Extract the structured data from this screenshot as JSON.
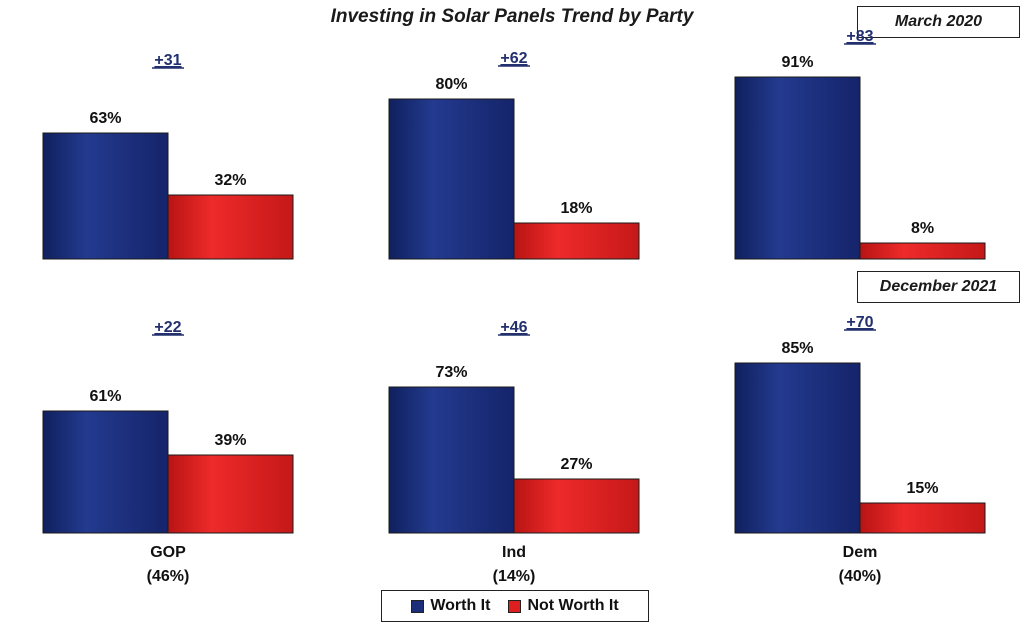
{
  "chart_data": {
    "type": "bar",
    "title": "Investing in Solar Panels Trend by Party",
    "categories": [
      "GOP",
      "Ind",
      "Dem"
    ],
    "category_sublabels": [
      "(46%)",
      "(14%)",
      "(40%)"
    ],
    "ylim": [
      0,
      100
    ],
    "grid": false,
    "legend_position": "bottom",
    "series": [
      {
        "name": "Worth It",
        "color": "#1b2e7a"
      },
      {
        "name": "Not Worth It",
        "color": "#dd1f1f"
      }
    ],
    "panels": [
      {
        "period": "March 2020",
        "worth_it": [
          63,
          80,
          91
        ],
        "not_worth_it": [
          32,
          18,
          8
        ],
        "margins": [
          "+31",
          "+62",
          "+83"
        ]
      },
      {
        "period": "December 2021",
        "worth_it": [
          61,
          73,
          85
        ],
        "not_worth_it": [
          39,
          27,
          15
        ],
        "margins": [
          "+22",
          "+46",
          "+70"
        ]
      }
    ]
  }
}
